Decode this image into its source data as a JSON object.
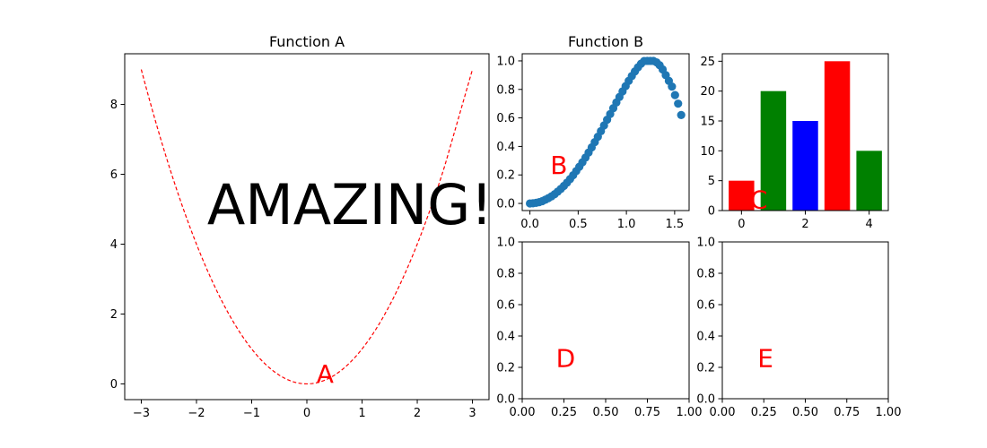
{
  "figure_text": "AMAZING!",
  "colors": {
    "annotation": "#ff0000",
    "line": "#ff0000",
    "scatter": "#1f77b4",
    "bar_red": "#ff0000",
    "bar_green": "#008000",
    "bar_blue": "#0000ff",
    "axis": "#000000",
    "background": "#ffffff"
  },
  "chart_data": [
    {
      "id": "A",
      "type": "line",
      "title": "Function A",
      "label": "A",
      "line_style": "dashed",
      "x": [
        -3.0,
        -2.5,
        -2.0,
        -1.5,
        -1.0,
        -0.5,
        0.0,
        0.5,
        1.0,
        1.5,
        2.0,
        2.5,
        3.0
      ],
      "y": [
        9.0,
        6.25,
        4.0,
        2.25,
        1.0,
        0.25,
        0.0,
        0.25,
        1.0,
        2.25,
        4.0,
        6.25,
        9.0
      ],
      "xlim": [
        -3.3,
        3.3
      ],
      "ylim": [
        -0.45,
        9.45
      ],
      "xticks": [
        -3,
        -2,
        -1,
        0,
        1,
        2,
        3
      ],
      "xtick_labels": [
        "−3",
        "−2",
        "−1",
        "0",
        "1",
        "2",
        "3"
      ],
      "yticks": [
        0,
        2,
        4,
        6,
        8
      ],
      "ytick_labels": [
        "0",
        "2",
        "4",
        "6",
        "8"
      ]
    },
    {
      "id": "B",
      "type": "scatter",
      "title": "Function B",
      "label": "B",
      "x": [
        0.0,
        0.032,
        0.064,
        0.096,
        0.128,
        0.16,
        0.192,
        0.224,
        0.256,
        0.288,
        0.32,
        0.352,
        0.384,
        0.416,
        0.448,
        0.48,
        0.512,
        0.544,
        0.576,
        0.608,
        0.64,
        0.672,
        0.704,
        0.736,
        0.768,
        0.8,
        0.832,
        0.864,
        0.896,
        0.928,
        0.96,
        0.992,
        1.024,
        1.056,
        1.088,
        1.12,
        1.152,
        1.184,
        1.216,
        1.248,
        1.28,
        1.312,
        1.344,
        1.376,
        1.408,
        1.44,
        1.472,
        1.504,
        1.536,
        1.568
      ],
      "y": [
        0.0,
        0.001,
        0.004,
        0.009,
        0.016,
        0.026,
        0.037,
        0.05,
        0.065,
        0.083,
        0.102,
        0.123,
        0.146,
        0.171,
        0.198,
        0.227,
        0.257,
        0.289,
        0.322,
        0.357,
        0.393,
        0.43,
        0.468,
        0.507,
        0.547,
        0.587,
        0.627,
        0.668,
        0.708,
        0.747,
        0.786,
        0.823,
        0.86,
        0.894,
        0.926,
        0.955,
        0.98,
        0.999,
        1.0,
        1.0,
        1.0,
        0.99,
        0.97,
        0.94,
        0.9,
        0.86,
        0.82,
        0.76,
        0.7,
        0.62
      ],
      "xlim": [
        -0.08,
        1.65
      ],
      "ylim": [
        -0.05,
        1.05
      ],
      "xticks": [
        0.0,
        0.5,
        1.0,
        1.5
      ],
      "xtick_labels": [
        "0.0",
        "0.5",
        "1.0",
        "1.5"
      ],
      "yticks": [
        0.0,
        0.2,
        0.4,
        0.6,
        0.8,
        1.0
      ],
      "ytick_labels": [
        "0.0",
        "0.2",
        "0.4",
        "0.6",
        "0.8",
        "1.0"
      ]
    },
    {
      "id": "C",
      "type": "bar",
      "title": "",
      "label": "C",
      "categories": [
        0,
        1,
        2,
        3,
        4
      ],
      "values": [
        5,
        20,
        15,
        25,
        10
      ],
      "bar_colors": [
        "#ff0000",
        "#008000",
        "#0000ff",
        "#ff0000",
        "#008000"
      ],
      "xlim": [
        -0.6,
        4.6
      ],
      "ylim": [
        0,
        26.25
      ],
      "xticks": [
        0,
        2,
        4
      ],
      "xtick_labels": [
        "0",
        "2",
        "4"
      ],
      "yticks": [
        0,
        5,
        10,
        15,
        20,
        25
      ],
      "ytick_labels": [
        "0",
        "5",
        "10",
        "15",
        "20",
        "25"
      ]
    },
    {
      "id": "D",
      "type": "scatter",
      "title": "",
      "label": "D",
      "x": [],
      "y": [],
      "xlim": [
        0,
        1
      ],
      "ylim": [
        0,
        1
      ],
      "xticks": [
        0,
        0.25,
        0.5,
        0.75,
        1
      ],
      "xtick_labels": [
        "0.00",
        "0.25",
        "0.50",
        "0.75",
        "1.00"
      ],
      "yticks": [
        0,
        0.2,
        0.4,
        0.6,
        0.8,
        1.0
      ],
      "ytick_labels": [
        "0.0",
        "0.2",
        "0.4",
        "0.6",
        "0.8",
        "1.0"
      ]
    },
    {
      "id": "E",
      "type": "scatter",
      "title": "",
      "label": "E",
      "x": [],
      "y": [],
      "xlim": [
        0,
        1
      ],
      "ylim": [
        0,
        1
      ],
      "xticks": [
        0,
        0.25,
        0.5,
        0.75,
        1
      ],
      "xtick_labels": [
        "0.00",
        "0.25",
        "0.50",
        "0.75",
        "1.00"
      ],
      "yticks": [
        0,
        0.2,
        0.4,
        0.6,
        0.8,
        1.0
      ],
      "ytick_labels": [
        "0.0",
        "0.2",
        "0.4",
        "0.6",
        "0.8",
        "1.0"
      ]
    }
  ]
}
